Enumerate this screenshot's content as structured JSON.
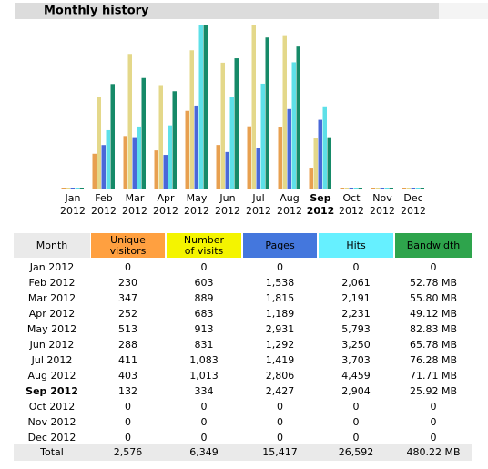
{
  "header": {
    "title": "Monthly history"
  },
  "chart_data": {
    "type": "bar",
    "categories": [
      "Jan 2012",
      "Feb 2012",
      "Mar 2012",
      "Apr 2012",
      "May 2012",
      "Jun 2012",
      "Jul 2012",
      "Aug 2012",
      "Sep 2012",
      "Oct 2012",
      "Nov 2012",
      "Dec 2012"
    ],
    "bold_category_index": 8,
    "series": [
      {
        "name": "Unique visitors",
        "color": "#e8a050",
        "header_color": "#ffa040",
        "values": [
          0,
          230,
          347,
          252,
          513,
          288,
          411,
          403,
          132,
          0,
          0,
          0
        ],
        "value_labels": [
          "0",
          "230",
          "347",
          "252",
          "513",
          "288",
          "411",
          "403",
          "132",
          "0",
          "0",
          "0"
        ]
      },
      {
        "name": "Number of visits",
        "color": "#e4d88a",
        "header_color": "#f4f400",
        "values": [
          0,
          603,
          889,
          683,
          913,
          831,
          1083,
          1013,
          334,
          0,
          0,
          0
        ],
        "value_labels": [
          "0",
          "603",
          "889",
          "683",
          "913",
          "831",
          "1,083",
          "1,013",
          "334",
          "0",
          "0",
          "0"
        ]
      },
      {
        "name": "Pages",
        "color": "#4a68d8",
        "header_color": "#4477dd",
        "values": [
          0,
          1538,
          1815,
          1189,
          2931,
          1292,
          1419,
          2806,
          2427,
          0,
          0,
          0
        ],
        "value_labels": [
          "0",
          "1,538",
          "1,815",
          "1,189",
          "2,931",
          "1,292",
          "1,419",
          "2,806",
          "2,427",
          "0",
          "0",
          "0"
        ]
      },
      {
        "name": "Hits",
        "color": "#5ee0e8",
        "header_color": "#66f0ff",
        "values": [
          0,
          2061,
          2191,
          2231,
          5793,
          3250,
          3703,
          4459,
          2904,
          0,
          0,
          0
        ],
        "value_labels": [
          "0",
          "2,061",
          "2,191",
          "2,231",
          "5,793",
          "3,250",
          "3,703",
          "4,459",
          "2,904",
          "0",
          "0",
          "0"
        ]
      },
      {
        "name": "Bandwidth",
        "color": "#168a68",
        "header_color": "#2ea44c",
        "values": [
          0,
          52.78,
          55.8,
          49.12,
          82.83,
          65.78,
          76.28,
          71.71,
          25.92,
          0,
          0,
          0
        ],
        "value_labels": [
          "0",
          "52.78 MB",
          "55.80 MB",
          "49.12 MB",
          "82.83 MB",
          "65.78 MB",
          "76.28 MB",
          "71.71 MB",
          "25.92 MB",
          "0",
          "0",
          "0"
        ]
      }
    ]
  },
  "table": {
    "month_header": "Month",
    "total": {
      "label": "Total",
      "values": [
        "2,576",
        "6,349",
        "15,417",
        "26,592",
        "480.22 MB"
      ]
    }
  }
}
